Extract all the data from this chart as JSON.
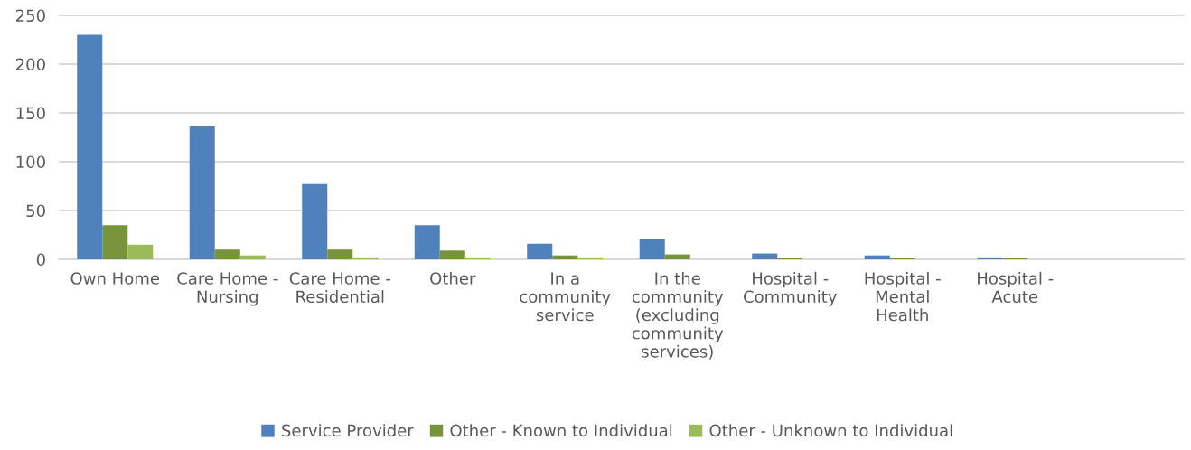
{
  "chart_data": {
    "type": "bar",
    "categories": [
      "Own Home",
      "Care Home -\nNursing",
      "Care Home -\nResidential",
      "Other",
      "In a\ncommunity\nservice",
      "In the\ncommunity\n(excluding\ncommunity\nservices)",
      "Hospital -\nCommunity",
      "Hospital -\nMental\nHealth",
      "Hospital -\nAcute",
      null
    ],
    "series": [
      {
        "name": "Service Provider",
        "color": "#4f81bd",
        "values": [
          230,
          137,
          77,
          35,
          16,
          21,
          6,
          4,
          2,
          null
        ]
      },
      {
        "name": "Other - Known to Individual",
        "color": "#77933c",
        "values": [
          35,
          10,
          10,
          9,
          4,
          5,
          1,
          1,
          1,
          null
        ]
      },
      {
        "name": "Other - Unknown to Individual",
        "color": "#9bbb59",
        "values": [
          15,
          4,
          2,
          2,
          2,
          0,
          0,
          0,
          0,
          null
        ]
      }
    ],
    "ylim": [
      0,
      250
    ],
    "yticks": [
      0,
      50,
      100,
      150,
      200,
      250
    ],
    "grid": "y",
    "legend": "bottom"
  }
}
